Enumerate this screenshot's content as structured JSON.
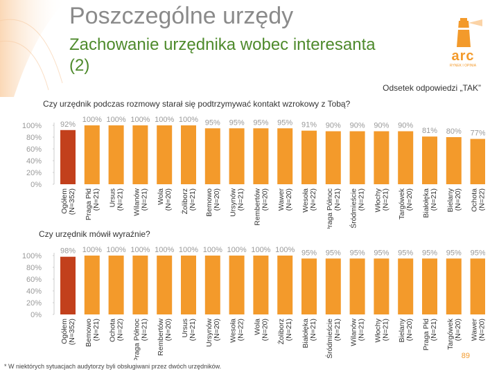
{
  "slide": {
    "title": "Poszczególne urzędy",
    "subtitle": "Zachowanie urzędnika wobec interesanta (2)",
    "note": "Odsetek odpowiedzi „TAK”",
    "footnote": "* W niektórych sytuacjach audytorzy byli obsługiwani przez dwóch urzędników.",
    "page_number": "89"
  },
  "logo": {
    "word": "arc",
    "tagline": "RYNEK I OPINIA"
  },
  "colors": {
    "orange": "#f39a2b",
    "highlight": "#c2401c",
    "title_gray": "#8a8a8a",
    "subtitle_green": "#4e8a2c",
    "axis_text": "#999999"
  },
  "chart_data": [
    {
      "type": "bar",
      "title": "Czy urzędnik podczas rozmowy starał się podtrzymywać kontakt wzrokowy z Tobą?",
      "categories": [
        "Ogółem (N=352)",
        "Praga Płd (N=21)",
        "Ursus (N=21)",
        "Wilanów (N=21)",
        "Wola (N=20)",
        "Żoliborz (N=21)",
        "Bemowo (N=20)",
        "Ursynów (N=21)",
        "Rembertów (N=20)",
        "Wawer (N=20)",
        "Wesoła (N=22)",
        "Praga Północ (N=21)",
        "Śródmieście (N=21)",
        "Włochy (N=21)",
        "Targówek (N=20)",
        "Białołęka (N=21)",
        "Bielany (N=20)",
        "Ochota (N=22)"
      ],
      "values": [
        92,
        100,
        100,
        100,
        100,
        100,
        95,
        95,
        95,
        95,
        91,
        90,
        90,
        90,
        90,
        81,
        80,
        77
      ],
      "value_labels": [
        "92%",
        "100%",
        "100%",
        "100%",
        "100%",
        "100%",
        "95%",
        "95%",
        "95%",
        "95%",
        "91%",
        "90%",
        "90%",
        "90%",
        "90%",
        "81%",
        "80%",
        "77%"
      ],
      "highlight_index": 0,
      "ylim": [
        0,
        100
      ],
      "yticks": [
        "0%",
        "20%",
        "40%",
        "60%",
        "80%",
        "100%"
      ],
      "grid": false,
      "legend": "none"
    },
    {
      "type": "bar",
      "title": "Czy urzędnik mówił wyraźnie?",
      "categories": [
        "Ogółem (N=352)",
        "Bemowo (N=21)",
        "Ochota (N=22)",
        "Praga Północ (N=21)",
        "Rembertów (N=20)",
        "Ursus (N=21)",
        "Ursynów (N=20)",
        "Wesoła (N=22)",
        "Wola (N=20)",
        "Żoliborz (N=21)",
        "Białołęka (N=21)",
        "Śródmieście (N=21)",
        "Wilanów (N=21)",
        "Włochy (N=21)",
        "Bielany (N=20)",
        "Praga Płd (N=21)",
        "Targówek (N=20)",
        "Wawer (N=20)"
      ],
      "values": [
        98,
        100,
        100,
        100,
        100,
        100,
        100,
        100,
        100,
        100,
        95,
        95,
        95,
        95,
        95,
        95,
        95,
        95
      ],
      "value_labels": [
        "98%",
        "100%",
        "100%",
        "100%",
        "100%",
        "100%",
        "100%",
        "100%",
        "100%",
        "100%",
        "95%",
        "95%",
        "95%",
        "95%",
        "95%",
        "95%",
        "95%",
        "95%"
      ],
      "highlight_index": 0,
      "ylim": [
        0,
        100
      ],
      "yticks": [
        "0%",
        "20%",
        "40%",
        "60%",
        "80%",
        "100%"
      ],
      "grid": false,
      "legend": "none"
    }
  ]
}
